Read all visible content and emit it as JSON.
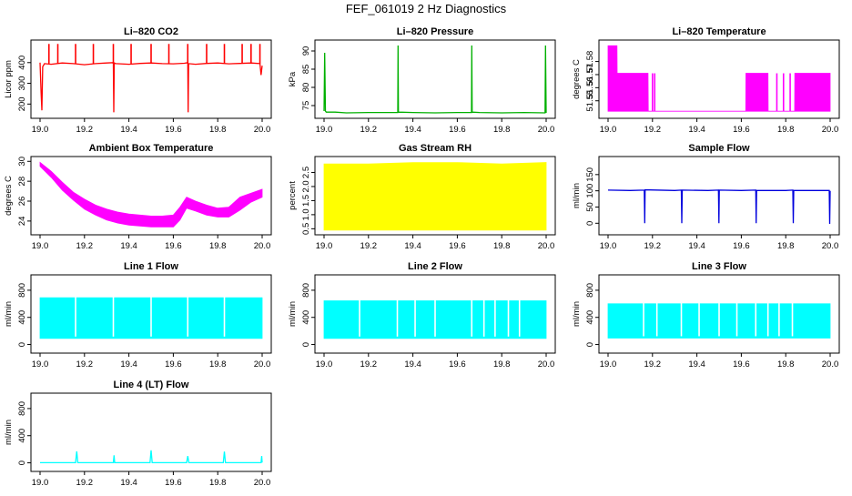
{
  "page": {
    "title": "FEF_061019  2 Hz Diagnostics"
  },
  "chart_data": [
    {
      "type": "line",
      "title": "Li–820 CO2",
      "ylabel": "Licor ppm",
      "xlabel": "",
      "xlim": [
        19.0,
        20.0
      ],
      "ylim": [
        140,
        500
      ],
      "xticks": [
        19.0,
        19.2,
        19.4,
        19.6,
        19.8,
        20.0
      ],
      "yticks": [
        200,
        300,
        400
      ],
      "color": "#ff0000",
      "fill_band": false,
      "series": [
        {
          "x": [
            19.0,
            19.005,
            19.008,
            19.012,
            19.02,
            19.05,
            19.1,
            19.15,
            19.2,
            19.25,
            19.3,
            19.33,
            19.332,
            19.334,
            19.34,
            19.4,
            19.45,
            19.5,
            19.55,
            19.6,
            19.65,
            19.665,
            19.667,
            19.669,
            19.7,
            19.75,
            19.8,
            19.85,
            19.9,
            19.95,
            19.99,
            19.995,
            20.0
          ],
          "y": [
            400,
            250,
            170,
            380,
            395,
            392,
            398,
            395,
            390,
            395,
            398,
            400,
            160,
            398,
            395,
            392,
            396,
            398,
            395,
            394,
            397,
            400,
            160,
            395,
            392,
            396,
            398,
            394,
            396,
            398,
            395,
            340,
            385
          ]
        }
      ],
      "spikes": {
        "x": [
          19.04,
          19.08,
          19.16,
          19.24,
          19.33,
          19.41,
          19.5,
          19.58,
          19.665,
          19.75,
          19.83,
          19.91,
          19.95,
          19.99
        ],
        "low": 395,
        "high": 490
      }
    },
    {
      "type": "line",
      "title": "Li–820 Pressure",
      "ylabel": "kPa",
      "xlabel": "",
      "xlim": [
        19.0,
        20.0
      ],
      "ylim": [
        72,
        92.5
      ],
      "xticks": [
        19.0,
        19.2,
        19.4,
        19.6,
        19.8,
        20.0
      ],
      "yticks": [
        75,
        80,
        85,
        90
      ],
      "color": "#00b000",
      "fill_band": false,
      "series": [
        {
          "x": [
            19.0,
            19.003,
            19.006,
            19.01,
            19.05,
            19.1,
            19.2,
            19.3,
            19.332,
            19.333,
            19.335,
            19.4,
            19.5,
            19.6,
            19.664,
            19.665,
            19.667,
            19.7,
            19.8,
            19.9,
            19.995,
            19.997,
            20.0
          ],
          "y": [
            73.5,
            89.5,
            73.5,
            73.2,
            73.2,
            73.0,
            73.1,
            73.1,
            73.1,
            91.5,
            73.2,
            73.1,
            73.0,
            73.1,
            73.1,
            91.5,
            73.2,
            73.1,
            73.0,
            73.1,
            73.0,
            91.5,
            73.0
          ]
        }
      ]
    },
    {
      "type": "area",
      "title": "Li–820 Temperature",
      "ylabel": "degrees C",
      "xlabel": "",
      "xlim": [
        19.0,
        20.0
      ],
      "ylim": [
        51.538,
        51.595
      ],
      "xticks": [
        19.0,
        19.2,
        19.4,
        19.6,
        19.8,
        20.0
      ],
      "yticks": [
        51.55,
        51.56,
        51.57,
        51.58
      ],
      "ytick_labels": [
        "51.55",
        "51.56",
        "51.57",
        "51.58"
      ],
      "color": "#ff00ff",
      "fill_band": true,
      "band": {
        "x": [
          19.0,
          19.04,
          19.041,
          19.18,
          19.181,
          19.62,
          19.621,
          19.72,
          19.721,
          19.84,
          19.841,
          20.0
        ],
        "low": [
          51.542,
          51.542,
          51.542,
          51.542,
          51.542,
          51.542,
          51.542,
          51.542,
          51.542,
          51.542,
          51.542,
          51.542
        ],
        "high": [
          51.592,
          51.592,
          51.571,
          51.571,
          51.542,
          51.542,
          51.571,
          51.571,
          51.542,
          51.542,
          51.571,
          51.571
        ]
      },
      "spikes": {
        "x": [
          19.2,
          19.21,
          19.76,
          19.79,
          19.82
        ],
        "low": 51.542,
        "high": 51.571
      }
    },
    {
      "type": "area",
      "title": "Ambient Box Temperature",
      "ylabel": "degrees C",
      "xlabel": "",
      "xlim": [
        19.0,
        20.0
      ],
      "ylim": [
        22.8,
        30.3
      ],
      "xticks": [
        19.0,
        19.2,
        19.4,
        19.6,
        19.8,
        20.0
      ],
      "yticks": [
        24,
        26,
        28,
        30
      ],
      "color": "#ff00ff",
      "fill_band": true,
      "band": {
        "x": [
          19.0,
          19.05,
          19.1,
          19.15,
          19.2,
          19.25,
          19.3,
          19.35,
          19.4,
          19.45,
          19.5,
          19.55,
          19.6,
          19.63,
          19.66,
          19.7,
          19.75,
          19.8,
          19.85,
          19.9,
          19.95,
          20.0
        ],
        "low": [
          29.5,
          28.4,
          27.1,
          26.1,
          25.2,
          24.6,
          24.1,
          23.8,
          23.6,
          23.5,
          23.4,
          23.4,
          23.4,
          24.1,
          25.3,
          25.0,
          24.6,
          24.4,
          24.4,
          25.1,
          25.9,
          26.4
        ],
        "high": [
          29.9,
          29.0,
          27.9,
          26.9,
          26.2,
          25.6,
          25.2,
          24.9,
          24.7,
          24.6,
          24.5,
          24.5,
          24.6,
          25.4,
          26.4,
          26.0,
          25.6,
          25.3,
          25.4,
          26.4,
          26.8,
          27.2
        ]
      }
    },
    {
      "type": "area",
      "title": "Gas Stream RH",
      "ylabel": "percent",
      "xlabel": "",
      "xlim": [
        19.0,
        20.0
      ],
      "ylim": [
        0.35,
        3.0
      ],
      "xticks": [
        19.0,
        19.2,
        19.4,
        19.6,
        19.8,
        20.0
      ],
      "yticks": [
        0.5,
        1.0,
        1.5,
        2.0,
        2.5
      ],
      "ytick_labels": [
        "0.5",
        "1.0",
        "1.5",
        "2.0",
        "2.5"
      ],
      "color": "#ffff00",
      "fill_band": true,
      "band": {
        "x": [
          19.0,
          19.2,
          19.4,
          19.6,
          19.8,
          20.0
        ],
        "low": [
          0.45,
          0.45,
          0.45,
          0.45,
          0.45,
          0.45
        ],
        "high": [
          2.8,
          2.8,
          2.85,
          2.85,
          2.8,
          2.85
        ]
      }
    },
    {
      "type": "line",
      "title": "Sample Flow",
      "ylabel": "ml/min",
      "xlabel": "",
      "xlim": [
        19.0,
        20.0
      ],
      "ylim": [
        -30,
        200
      ],
      "xticks": [
        19.0,
        19.2,
        19.4,
        19.6,
        19.8,
        20.0
      ],
      "yticks": [
        0,
        50,
        100,
        150
      ],
      "color": "#0000dd",
      "fill_band": false,
      "series": [
        {
          "x": [
            19.0,
            19.1,
            19.163,
            19.165,
            19.167,
            19.3,
            19.33,
            19.332,
            19.334,
            19.45,
            19.497,
            19.499,
            19.501,
            19.6,
            19.665,
            19.667,
            19.669,
            19.8,
            19.832,
            19.834,
            19.836,
            19.95,
            19.996,
            19.998,
            20.0
          ],
          "y": [
            102,
            101,
            102,
            0,
            103,
            101,
            102,
            0,
            102,
            101,
            102,
            0,
            102,
            101,
            102,
            0,
            101,
            101,
            102,
            0,
            101,
            101,
            101,
            -2,
            100
          ]
        }
      ]
    },
    {
      "type": "area",
      "title": "Line 1 Flow",
      "ylabel": "ml/min",
      "xlabel": "",
      "xlim": [
        19.0,
        20.0
      ],
      "ylim": [
        -100,
        1000
      ],
      "xticks": [
        19.0,
        19.2,
        19.4,
        19.6,
        19.8,
        20.0
      ],
      "yticks": [
        0,
        400,
        800
      ],
      "ytick_labels": [
        "0",
        "400",
        "800"
      ],
      "color": "#00ffff",
      "fill_band": true,
      "band": {
        "x": [
          19.0,
          20.0
        ],
        "low": [
          90,
          90
        ],
        "high": [
          690,
          690
        ]
      },
      "gaps": [
        19.16,
        19.33,
        19.5,
        19.665,
        19.83
      ]
    },
    {
      "type": "area",
      "title": "Line 2 Flow",
      "ylabel": "ml/min",
      "xlabel": "",
      "xlim": [
        19.0,
        20.0
      ],
      "ylim": [
        -100,
        1000
      ],
      "xticks": [
        19.0,
        19.2,
        19.4,
        19.6,
        19.8,
        20.0
      ],
      "yticks": [
        0,
        400,
        800
      ],
      "ytick_labels": [
        "0",
        "400",
        "800"
      ],
      "color": "#00ffff",
      "fill_band": true,
      "band": {
        "x": [
          19.0,
          20.0
        ],
        "low": [
          90,
          90
        ],
        "high": [
          645,
          645
        ]
      },
      "gaps": [
        19.16,
        19.33,
        19.41,
        19.5,
        19.665,
        19.72,
        19.77,
        19.83,
        19.88
      ]
    },
    {
      "type": "area",
      "title": "Line 3 Flow",
      "ylabel": "ml/min",
      "xlabel": "",
      "xlim": [
        19.0,
        20.0
      ],
      "ylim": [
        -100,
        1000
      ],
      "xticks": [
        19.0,
        19.2,
        19.4,
        19.6,
        19.8,
        20.0
      ],
      "yticks": [
        0,
        400,
        800
      ],
      "ytick_labels": [
        "0",
        "400",
        "800"
      ],
      "color": "#00ffff",
      "fill_band": true,
      "band": {
        "x": [
          19.0,
          20.0
        ],
        "low": [
          95,
          95
        ],
        "high": [
          600,
          600
        ]
      },
      "gaps": [
        19.16,
        19.22,
        19.33,
        19.41,
        19.5,
        19.58,
        19.665,
        19.72,
        19.77,
        19.83
      ]
    },
    {
      "type": "line",
      "title": "Line 4 (LT) Flow",
      "ylabel": "ml/min",
      "xlabel": "",
      "xlim": [
        19.0,
        20.0
      ],
      "ylim": [
        -100,
        1000
      ],
      "xticks": [
        19.0,
        19.2,
        19.4,
        19.6,
        19.8,
        20.0
      ],
      "yticks": [
        0,
        400,
        800
      ],
      "ytick_labels": [
        "0",
        "400",
        "800"
      ],
      "color": "#00ffff",
      "fill_band": false,
      "series": [
        {
          "x": [
            19.0,
            19.16,
            19.165,
            19.17,
            19.33,
            19.333,
            19.336,
            19.495,
            19.5,
            19.505,
            19.66,
            19.665,
            19.67,
            19.825,
            19.83,
            19.835,
            19.995,
            19.998,
            20.0
          ],
          "y": [
            2,
            2,
            170,
            2,
            2,
            110,
            2,
            2,
            185,
            2,
            2,
            100,
            2,
            2,
            165,
            2,
            2,
            100,
            4
          ]
        }
      ]
    }
  ]
}
